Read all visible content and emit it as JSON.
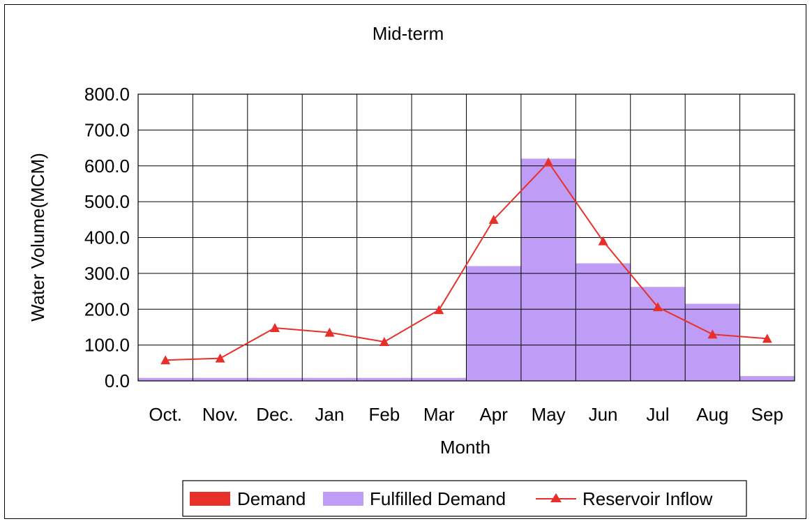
{
  "chart_data": {
    "type": "bar",
    "title": "Mid-term",
    "xlabel": "Month",
    "ylabel": "Water Volume(MCM)",
    "ylim": [
      0,
      800
    ],
    "yticks": [
      "0.0",
      "100.0",
      "200.0",
      "300.0",
      "400.0",
      "500.0",
      "600.0",
      "700.0",
      "800.0"
    ],
    "grid": true,
    "legend_position": "bottom",
    "categories": [
      "Oct.",
      "Nov.",
      "Dec.",
      "Jan",
      "Feb",
      "Mar",
      "Apr",
      "May",
      "Jun",
      "Jul",
      "Aug",
      "Sep"
    ],
    "series": [
      {
        "name": "Demand",
        "kind": "bar",
        "color": "#e8302a",
        "values": [
          8,
          8,
          8,
          8,
          8,
          8,
          320,
          620,
          328,
          262,
          215,
          13
        ]
      },
      {
        "name": "Fulfilled Demand",
        "kind": "bar",
        "color": "#bf9cf5",
        "values": [
          8,
          8,
          8,
          8,
          8,
          8,
          320,
          620,
          328,
          262,
          215,
          13
        ]
      },
      {
        "name": "Reservoir Inflow",
        "kind": "line",
        "color": "#e8302a",
        "marker": "triangle",
        "values": [
          58,
          63,
          148,
          135,
          109,
          198,
          450,
          610,
          390,
          206,
          130,
          118
        ]
      }
    ]
  }
}
